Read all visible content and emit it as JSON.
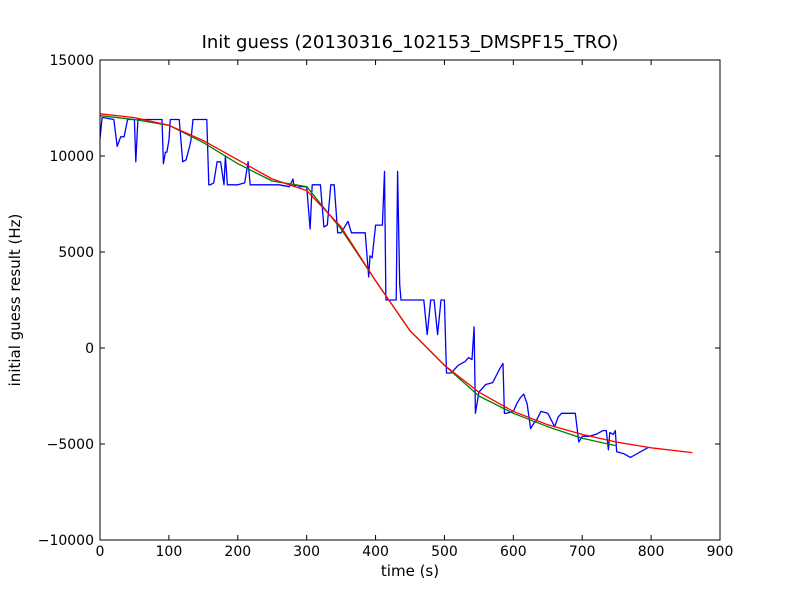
{
  "chart_data": {
    "type": "line",
    "title": "Init guess (20130316_102153_DMSPF15_TRO)",
    "xlabel": "time (s)",
    "ylabel": "initial guess result (Hz)",
    "xlim": [
      0,
      900
    ],
    "ylim": [
      -10000,
      15000
    ],
    "xticks": [
      0,
      100,
      200,
      300,
      400,
      500,
      600,
      700,
      800,
      900
    ],
    "yticks": [
      -10000,
      -5000,
      0,
      5000,
      10000,
      15000
    ],
    "xtick_labels": [
      "0",
      "100",
      "200",
      "300",
      "400",
      "500",
      "600",
      "700",
      "800",
      "900"
    ],
    "ytick_labels": [
      "−10000",
      "−5000",
      "0",
      "5000",
      "10000",
      "15000"
    ],
    "grid": false,
    "legend": "none",
    "series": [
      {
        "color": "#0000ff",
        "x": [
          0,
          3,
          5,
          20,
          25,
          30,
          35,
          40,
          45,
          50,
          52,
          55,
          57,
          60,
          70,
          80,
          85,
          90,
          92,
          95,
          97,
          100,
          102,
          110,
          115,
          120,
          125,
          130,
          132,
          135,
          140,
          145,
          150,
          155,
          158,
          160,
          165,
          170,
          172,
          175,
          180,
          182,
          185,
          200,
          210,
          215,
          218,
          220,
          240,
          260,
          275,
          280,
          282,
          285,
          290,
          300,
          305,
          308,
          310,
          320,
          325,
          330,
          335,
          340,
          345,
          350,
          360,
          365,
          370,
          375,
          380,
          385,
          390,
          392,
          395,
          400,
          405,
          410,
          413,
          415,
          420,
          425,
          430,
          432,
          435,
          437,
          440,
          450,
          460,
          470,
          475,
          480,
          485,
          490,
          495,
          500,
          503,
          510,
          515,
          520,
          525,
          530,
          535,
          540,
          543,
          545,
          550,
          555,
          560,
          570,
          580,
          585,
          587,
          590,
          600,
          605,
          610,
          615,
          620,
          625,
          630,
          633,
          640,
          650,
          660,
          665,
          670,
          680,
          690,
          695,
          700,
          710,
          720,
          730,
          735,
          738,
          740,
          745,
          748,
          750,
          760,
          770,
          780,
          795
        ],
        "y": [
          10900,
          12000,
          12000,
          11900,
          10500,
          11000,
          11000,
          11900,
          11900,
          11900,
          9700,
          11900,
          11900,
          11900,
          11900,
          11900,
          11900,
          11900,
          9600,
          10200,
          10200,
          10800,
          11900,
          11900,
          11900,
          9700,
          9800,
          10500,
          10800,
          11900,
          11900,
          11900,
          11900,
          11900,
          8500,
          8500,
          8600,
          9700,
          9700,
          9700,
          8500,
          10000,
          8500,
          8500,
          8600,
          9700,
          8500,
          8500,
          8500,
          8500,
          8400,
          8800,
          8400,
          8500,
          8400,
          8400,
          6200,
          8500,
          8500,
          8500,
          6300,
          6400,
          8500,
          8500,
          6000,
          6000,
          6600,
          6000,
          6000,
          6000,
          6000,
          6000,
          3700,
          4800,
          4700,
          6400,
          6400,
          6400,
          9200,
          2500,
          2500,
          2500,
          2500,
          9200,
          3300,
          2500,
          2500,
          2500,
          2500,
          2500,
          700,
          2500,
          2500,
          700,
          2500,
          2500,
          -1300,
          -1300,
          -1100,
          -900,
          -800,
          -700,
          -500,
          -600,
          1100,
          -3400,
          -2300,
          -2100,
          -1900,
          -1800,
          -1100,
          -800,
          -3400,
          -3400,
          -3300,
          -2900,
          -2600,
          -2400,
          -2900,
          -4200,
          -3900,
          -3800,
          -3300,
          -3400,
          -4100,
          -3600,
          -3400,
          -3400,
          -3400,
          -4900,
          -4600,
          -4600,
          -4500,
          -4300,
          -4300,
          -5300,
          -4400,
          -4500,
          -4300,
          -5400,
          -5500,
          -5700,
          -5500,
          -5200
        ]
      },
      {
        "color": "#008000",
        "x": [
          0,
          50,
          100,
          150,
          200,
          250,
          300,
          350,
          400,
          450,
          500,
          550,
          600,
          650,
          700,
          750
        ],
        "y": [
          12100,
          11900,
          11600,
          10700,
          9600,
          8700,
          8400,
          6200,
          3500,
          900,
          -900,
          -2500,
          -3400,
          -4100,
          -4700,
          -5100
        ]
      },
      {
        "color": "#ff0000",
        "x": [
          0,
          50,
          100,
          150,
          200,
          250,
          300,
          350,
          400,
          450,
          500,
          550,
          600,
          650,
          700,
          750,
          800,
          860
        ],
        "y": [
          12200,
          12000,
          11600,
          10800,
          9800,
          8800,
          8200,
          6300,
          3500,
          900,
          -900,
          -2300,
          -3300,
          -4000,
          -4500,
          -4900,
          -5200,
          -5450
        ]
      }
    ]
  }
}
